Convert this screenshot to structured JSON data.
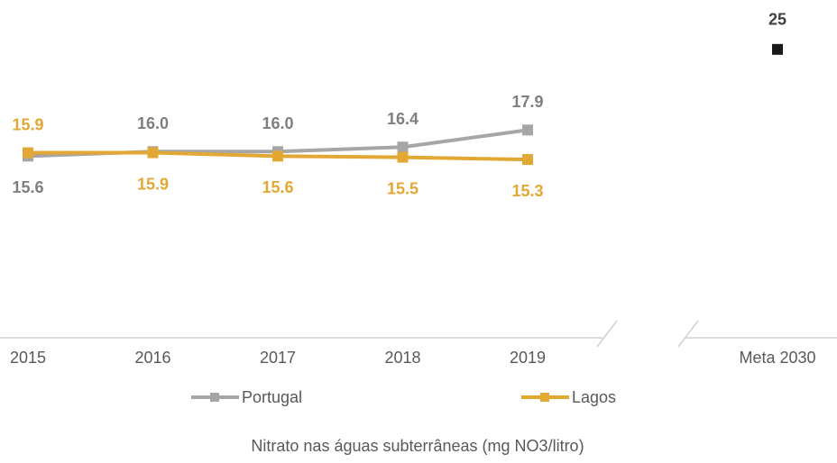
{
  "chart_data": {
    "type": "line",
    "title": "Nitrato nas águas subterrâneas (mg NO3/litro)",
    "categories": [
      "2015",
      "2016",
      "2017",
      "2018",
      "2019",
      "Meta 2030"
    ],
    "series": [
      {
        "name": "Portugal",
        "color": "#a6a6a6",
        "label_color": "#7f7f7f",
        "values": [
          15.6,
          16.0,
          16.0,
          16.4,
          17.9,
          null
        ],
        "value_labels": [
          "15.6",
          "16.0",
          "16.0",
          "16.4",
          "17.9",
          null
        ]
      },
      {
        "name": "Lagos",
        "color": "#e3a733",
        "label_color": "#e3a733",
        "values": [
          15.9,
          15.9,
          15.6,
          15.5,
          15.3,
          null
        ],
        "value_labels": [
          "15.9",
          "15.9",
          "15.6",
          "15.5",
          "15.3",
          null
        ]
      }
    ],
    "target": {
      "value": 25,
      "color": "#1a1a1a"
    },
    "ylim": [
      0,
      28
    ]
  }
}
